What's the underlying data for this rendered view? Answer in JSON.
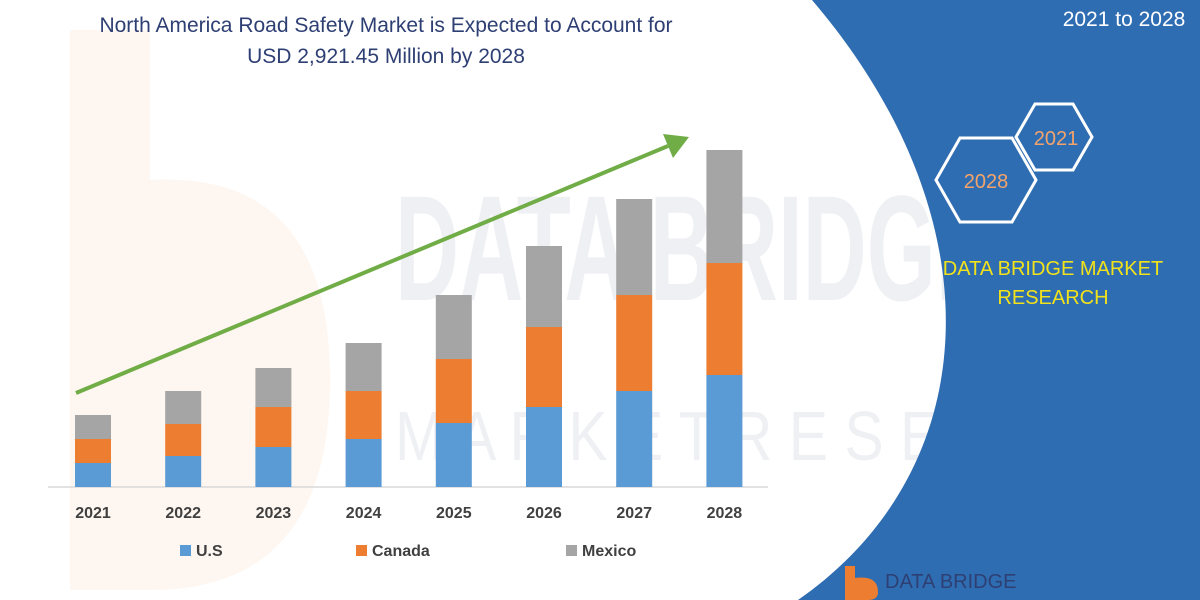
{
  "title_line1": "North America Road Safety Market is Expected to Account for",
  "title_line2": "USD 2,921.45 Million by 2028",
  "right_panel": {
    "period": "2021 to 2028",
    "hex_small_label": "2021",
    "hex_large_label": "2028",
    "brand_line1": "DATA BRIDGE MARKET",
    "brand_line2": "RESEARCH",
    "footer_logo_text": "DATA BRIDGE"
  },
  "watermark": {
    "line1": "DATA BRIDGE",
    "line2": "M A R K E T   R E S E A R C H"
  },
  "colors": {
    "title": "#2e3f73",
    "panel": "#2f6db2",
    "brand_text": "#f2e21a",
    "hex_text": "#f4a46a",
    "us": "#5b9bd5",
    "canada": "#ed7d31",
    "mexico": "#a5a5a5",
    "arrow": "#70ad47",
    "axis": "#d9d9d9"
  },
  "chart_data": {
    "type": "bar",
    "stacked": true,
    "categories": [
      "2021",
      "2022",
      "2023",
      "2024",
      "2025",
      "2026",
      "2027",
      "2028"
    ],
    "series": [
      {
        "name": "U.S",
        "values": [
          24,
          31,
          40,
          48,
          64,
          80,
          96,
          112
        ]
      },
      {
        "name": "Canada",
        "values": [
          24,
          32,
          40,
          48,
          64,
          80,
          96,
          112
        ]
      },
      {
        "name": "Mexico",
        "values": [
          24,
          33,
          39,
          48,
          64,
          81,
          96,
          113
        ]
      }
    ],
    "legend": "bottom",
    "grid": false,
    "trend_arrow": true
  }
}
